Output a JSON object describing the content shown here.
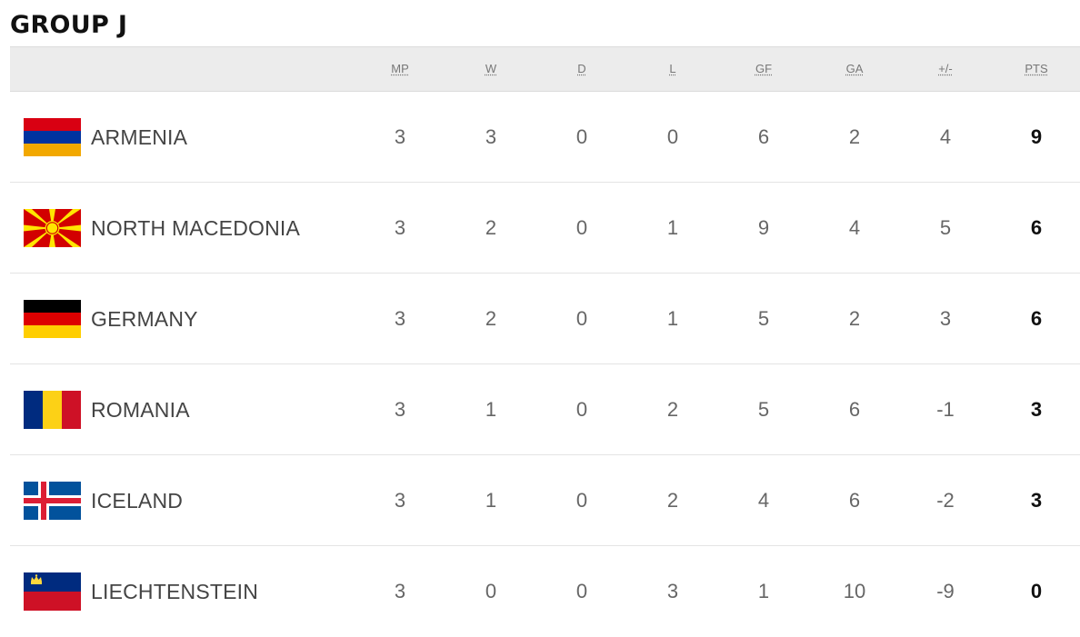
{
  "group_title": "GROUP J",
  "columns": {
    "mp": "MP",
    "w": "W",
    "d": "D",
    "l": "L",
    "gf": "GF",
    "ga": "GA",
    "gd": "+/-",
    "pts": "PTS"
  },
  "teams": [
    {
      "name": "ARMENIA",
      "flag": "armenia-flag-icon",
      "mp": "3",
      "w": "3",
      "d": "0",
      "l": "0",
      "gf": "6",
      "ga": "2",
      "gd": "4",
      "pts": "9"
    },
    {
      "name": "NORTH MACEDONIA",
      "flag": "north-macedonia-flag-icon",
      "mp": "3",
      "w": "2",
      "d": "0",
      "l": "1",
      "gf": "9",
      "ga": "4",
      "gd": "5",
      "pts": "6"
    },
    {
      "name": "GERMANY",
      "flag": "germany-flag-icon",
      "mp": "3",
      "w": "2",
      "d": "0",
      "l": "1",
      "gf": "5",
      "ga": "2",
      "gd": "3",
      "pts": "6"
    },
    {
      "name": "ROMANIA",
      "flag": "romania-flag-icon",
      "mp": "3",
      "w": "1",
      "d": "0",
      "l": "2",
      "gf": "5",
      "ga": "6",
      "gd": "-1",
      "pts": "3"
    },
    {
      "name": "ICELAND",
      "flag": "iceland-flag-icon",
      "mp": "3",
      "w": "1",
      "d": "0",
      "l": "2",
      "gf": "4",
      "ga": "6",
      "gd": "-2",
      "pts": "3"
    },
    {
      "name": "LIECHTENSTEIN",
      "flag": "liechtenstein-flag-icon",
      "mp": "3",
      "w": "0",
      "d": "0",
      "l": "3",
      "gf": "1",
      "ga": "10",
      "gd": "-9",
      "pts": "0"
    }
  ],
  "colors": {
    "header_bg": "#ececec",
    "row_divider": "#e4e4e4",
    "title": "#111111",
    "points": "#111111"
  }
}
